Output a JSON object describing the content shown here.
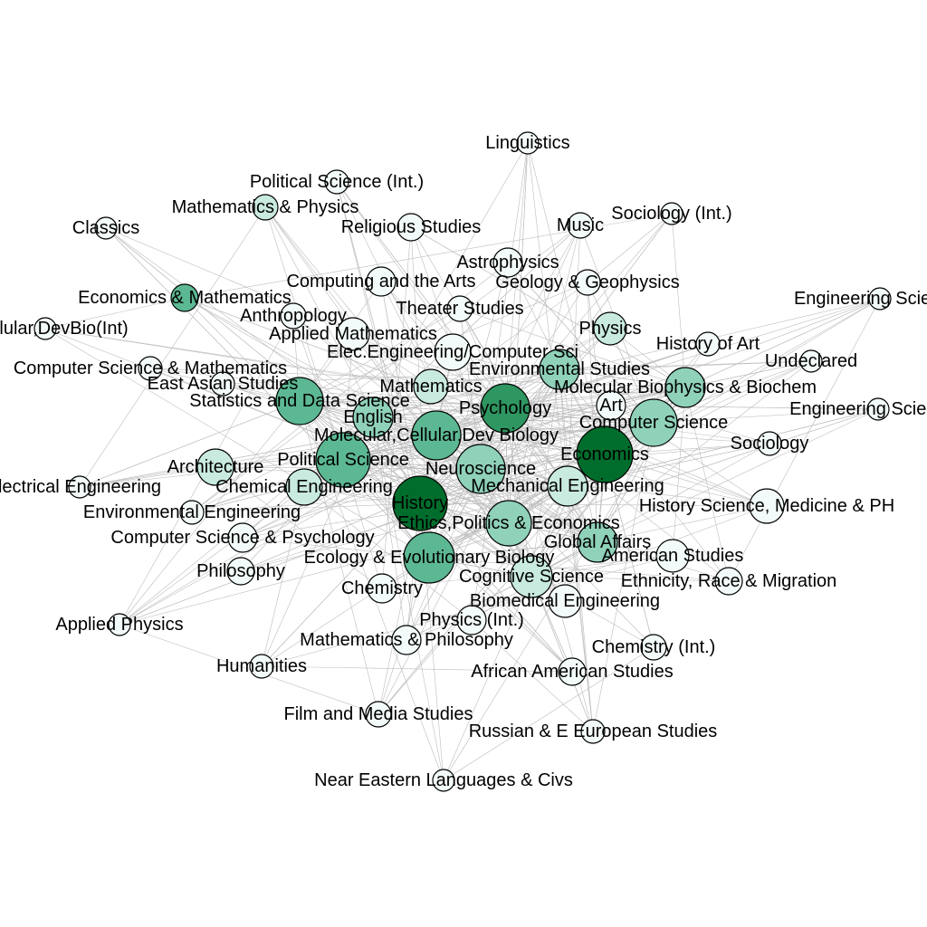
{
  "colors": {
    "edge": "#c8c8c8",
    "node_scale": [
      "#f2fbf9",
      "#c9eadf",
      "#8fd1b9",
      "#5cb893",
      "#2e9660",
      "#006d2c"
    ]
  },
  "nodes": [
    {
      "id": "linguistics",
      "label": "Linguistics",
      "level": 0
    },
    {
      "id": "polsci-int",
      "label": "Political Science (Int.)",
      "level": 0
    },
    {
      "id": "math-physics",
      "label": "Mathematics & Physics",
      "level": 1
    },
    {
      "id": "classics",
      "label": "Classics",
      "level": 0
    },
    {
      "id": "religious",
      "label": "Religious Studies",
      "level": 0
    },
    {
      "id": "music",
      "label": "Music",
      "level": 0
    },
    {
      "id": "sociology-int",
      "label": "Sociology (Int.)",
      "level": 0
    },
    {
      "id": "astrophysics",
      "label": "Astrophysics",
      "level": 0
    },
    {
      "id": "computing-arts",
      "label": "Computing and the Arts",
      "level": 0
    },
    {
      "id": "geology",
      "label": "Geology & Geophysics",
      "level": 0
    },
    {
      "id": "econ-math",
      "label": "Economics & Mathematics",
      "level": 3
    },
    {
      "id": "engsci-1",
      "label": "Engineering Science-",
      "level": 0
    },
    {
      "id": "theater",
      "label": "Theater Studies",
      "level": 0
    },
    {
      "id": "anthropology",
      "label": "Anthropology",
      "level": 0
    },
    {
      "id": "mcdb-int",
      "label": "r,Cellular,DevBio(Int)",
      "level": 0
    },
    {
      "id": "applied-math",
      "label": "Applied Mathematics",
      "level": 0
    },
    {
      "id": "physics",
      "label": "Physics",
      "level": 1
    },
    {
      "id": "history-art",
      "label": "History of Art",
      "level": 0
    },
    {
      "id": "ee-cs",
      "label": "Elec.Engineering/Computer Sci",
      "level": 0
    },
    {
      "id": "undeclared",
      "label": "Undeclared",
      "level": 0
    },
    {
      "id": "cs-math",
      "label": "Computer Science & Mathematics",
      "level": 0
    },
    {
      "id": "env-studies",
      "label": "Environmental Studies",
      "level": 2
    },
    {
      "id": "east-asian",
      "label": "East Asian Studies",
      "level": 0
    },
    {
      "id": "mathematics",
      "label": "Mathematics",
      "level": 1
    },
    {
      "id": "mbb",
      "label": "Molecular Biophysics & Biochem",
      "level": 2
    },
    {
      "id": "stats",
      "label": "Statistics and Data Science",
      "level": 3
    },
    {
      "id": "art",
      "label": "Art",
      "level": 0
    },
    {
      "id": "engsci-2",
      "label": "Engineering Science-I",
      "level": 0
    },
    {
      "id": "psychology",
      "label": "Psychology",
      "level": 4
    },
    {
      "id": "english",
      "label": "English",
      "level": 2
    },
    {
      "id": "computer-science",
      "label": "Computer Science",
      "level": 2
    },
    {
      "id": "mcdb",
      "label": "Molecular,Cellular,Dev Biology",
      "level": 3
    },
    {
      "id": "sociology",
      "label": "Sociology",
      "level": 0
    },
    {
      "id": "economics",
      "label": "Economics",
      "level": 5
    },
    {
      "id": "architecture",
      "label": "Architecture",
      "level": 1
    },
    {
      "id": "political-science",
      "label": "Political Science",
      "level": 3
    },
    {
      "id": "neuroscience",
      "label": "Neuroscience",
      "level": 2
    },
    {
      "id": "electrical-eng",
      "label": "lectrical Engineering",
      "level": 0
    },
    {
      "id": "chemical-eng",
      "label": "Chemical Engineering",
      "level": 1
    },
    {
      "id": "mechanical-eng",
      "label": "Mechanical Engineering",
      "level": 1
    },
    {
      "id": "env-eng",
      "label": "Environmental Engineering",
      "level": 0
    },
    {
      "id": "history",
      "label": "History",
      "level": 5
    },
    {
      "id": "history-science",
      "label": "History Science, Medicine & PH",
      "level": 0
    },
    {
      "id": "epe",
      "label": "Ethics,Politics & Economics",
      "level": 2
    },
    {
      "id": "cs-psych",
      "label": "Computer Science & Psychology",
      "level": 0
    },
    {
      "id": "global-affairs",
      "label": "Global Affairs",
      "level": 2
    },
    {
      "id": "american-studies",
      "label": "American Studies",
      "level": 0
    },
    {
      "id": "philosophy",
      "label": "Philosophy",
      "level": 0
    },
    {
      "id": "eeb",
      "label": "Ecology & Evolutionary Biology",
      "level": 3
    },
    {
      "id": "cognitive-science",
      "label": "Cognitive Science",
      "level": 1
    },
    {
      "id": "ethnicity",
      "label": "Ethnicity, Race & Migration",
      "level": 0
    },
    {
      "id": "chemistry",
      "label": "Chemistry",
      "level": 0
    },
    {
      "id": "biomedical-eng",
      "label": "Biomedical Engineering",
      "level": 0
    },
    {
      "id": "applied-physics",
      "label": "Applied Physics",
      "level": 0
    },
    {
      "id": "physics-int",
      "label": "Physics (Int.)",
      "level": 0
    },
    {
      "id": "math-philosophy",
      "label": "Mathematics & Philosophy",
      "level": 0
    },
    {
      "id": "chemistry-int",
      "label": "Chemistry (Int.)",
      "level": 0
    },
    {
      "id": "humanities",
      "label": "Humanities",
      "level": 0
    },
    {
      "id": "african-american",
      "label": "African American Studies",
      "level": 0
    },
    {
      "id": "film-media",
      "label": "Film and Media Studies",
      "level": 0
    },
    {
      "id": "russian",
      "label": "Russian & E European Studies",
      "level": 0
    },
    {
      "id": "near-eastern",
      "label": "Near Eastern Languages & Civs",
      "level": 0
    }
  ]
}
